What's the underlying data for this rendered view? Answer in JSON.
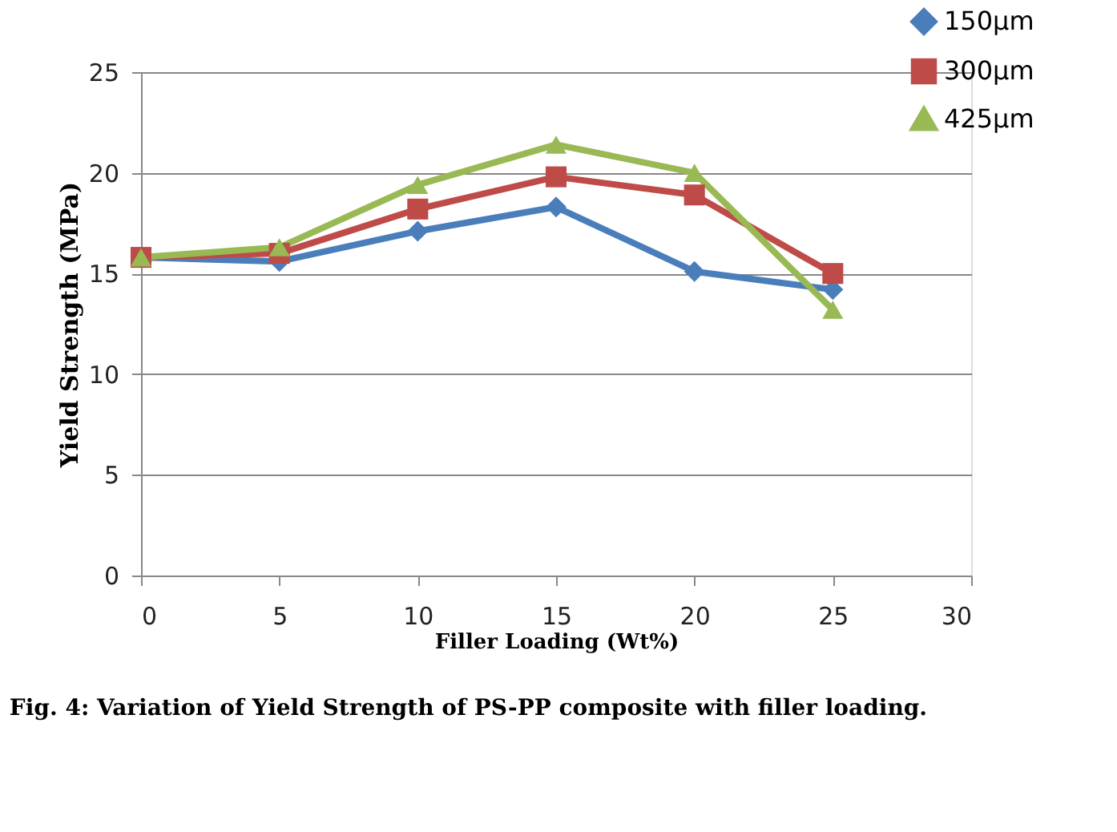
{
  "chart_data": {
    "type": "line",
    "xlabel": "Filler Loading (Wt%)",
    "ylabel": "Yield Strength (MPa)",
    "x": [
      0,
      5,
      10,
      15,
      20,
      25
    ],
    "series": [
      {
        "name": "150µm",
        "color": "#4a7ebb",
        "marker": "diamond",
        "values": [
          15.8,
          15.6,
          17.1,
          18.3,
          15.1,
          14.2
        ]
      },
      {
        "name": "300µm",
        "color": "#be4b48",
        "marker": "square",
        "values": [
          15.8,
          16.0,
          18.2,
          19.8,
          18.9,
          15.0
        ]
      },
      {
        "name": "425µm",
        "color": "#98b954",
        "marker": "triangle",
        "values": [
          15.8,
          16.3,
          19.4,
          21.4,
          20.0,
          13.2
        ]
      }
    ],
    "xlim": [
      0,
      30
    ],
    "xticks": [
      0,
      5,
      10,
      15,
      20,
      25,
      30
    ],
    "ylim": [
      0,
      25
    ],
    "yticks": [
      0,
      5,
      10,
      15,
      20,
      25
    ],
    "grid": "y",
    "legend": "top right",
    "line_style": "solid",
    "annotations": [
      "Fig. 4: Variation of Yield Strength of PS-PP composite with filler loading."
    ]
  }
}
